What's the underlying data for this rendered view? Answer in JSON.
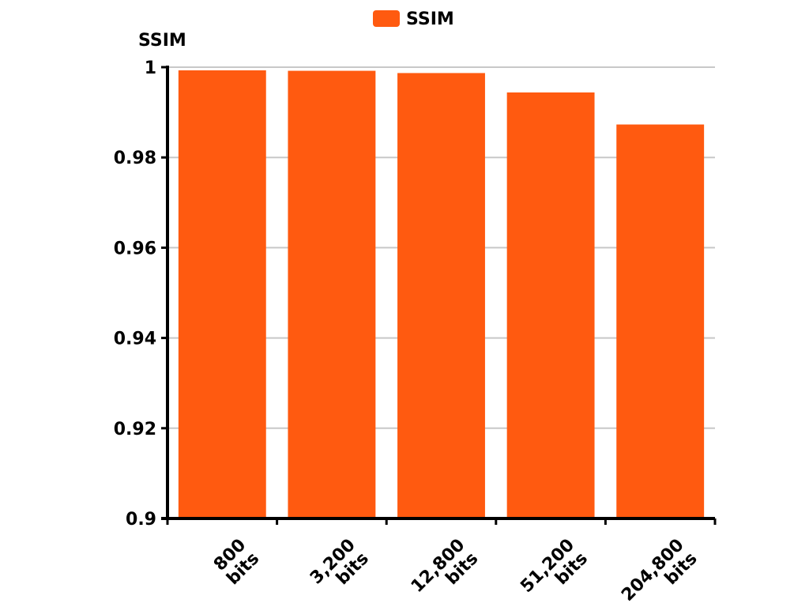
{
  "chart_data": {
    "type": "bar",
    "categories": [
      [
        "800",
        "bits"
      ],
      [
        "3,200",
        "bits"
      ],
      [
        "12,800",
        "bits"
      ],
      [
        "51,200",
        "bits"
      ],
      [
        "204,800",
        "bits"
      ]
    ],
    "series": [
      {
        "name": "SSIM",
        "color": "#ff5a10",
        "values": [
          0.9993,
          0.9992,
          0.9987,
          0.9944,
          0.9873
        ]
      }
    ],
    "ylabel": "SSIM",
    "xlabel": "",
    "ylim": [
      0.9,
      1
    ],
    "yticks": [
      {
        "value": 0.9,
        "label": "0.9"
      },
      {
        "value": 0.92,
        "label": "0.92"
      },
      {
        "value": 0.94,
        "label": "0.94"
      },
      {
        "value": 0.96,
        "label": "0.96"
      },
      {
        "value": 0.98,
        "label": "0.98"
      },
      {
        "value": 1,
        "label": "1"
      }
    ],
    "grid": true,
    "legend_position": "top-center",
    "colors": {
      "grid": "#c8c8c8",
      "axis": "#000000"
    }
  }
}
